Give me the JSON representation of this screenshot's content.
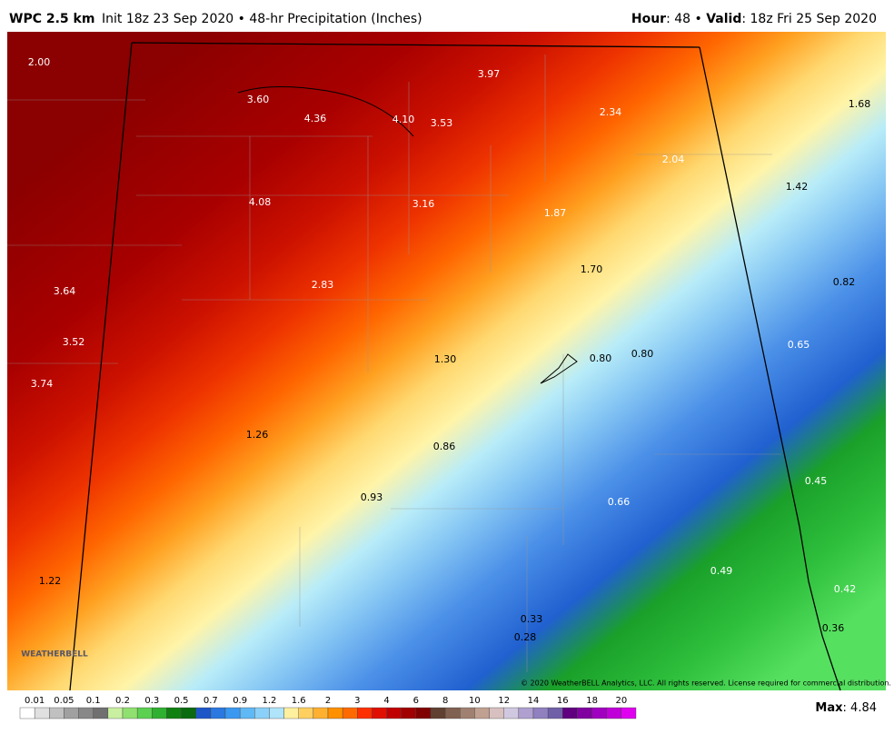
{
  "header": {
    "model": "WPC 2.5 km",
    "description": "Init 18z 23 Sep 2020 • 48-hr Precipitation (Inches)",
    "hour_key": "Hour",
    "hour_value": ": 48 • ",
    "valid_key": "Valid",
    "valid_value": ": 18z Fri 25 Sep 2020"
  },
  "map": {
    "labels": [
      "2.00",
      "3.97",
      "3.60",
      "4.36",
      "4.10",
      "3.53",
      "2.34",
      "1.68",
      "2.04",
      "1.42",
      "4.08",
      "3.16",
      "1.87",
      "1.70",
      "0.82",
      "3.64",
      "2.83",
      "3.52",
      "1.30",
      "0.80",
      "0.80",
      "0.65",
      "3.74",
      "1.26",
      "0.86",
      "0.45",
      "0.93",
      "0.66",
      "1.22",
      "0.49",
      "0.42",
      "0.33",
      "0.28",
      "0.36"
    ],
    "copyright": "© 2020 WeatherBELL Analytics, LLC. All rights reserved. License required for commercial distribution.",
    "logo": "WEATHERBELL"
  },
  "colorbar": {
    "ticks": [
      0.01,
      0.05,
      0.1,
      0.2,
      0.3,
      0.5,
      0.7,
      0.9,
      1.2,
      1.6,
      2,
      3,
      4,
      6,
      8,
      10,
      12,
      14,
      16,
      18,
      20
    ]
  },
  "max": {
    "key": "Max",
    "value": ": 4.84"
  }
}
